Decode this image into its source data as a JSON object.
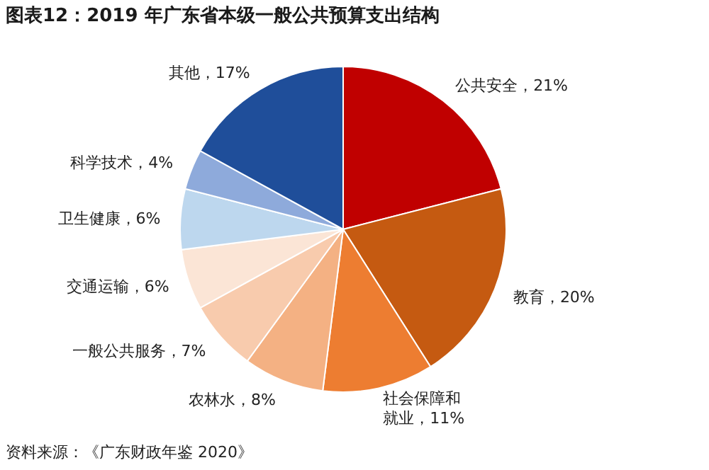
{
  "chart_data": {
    "type": "pie",
    "title": "图表12：2019 年广东省本级一般公共预算支出结构",
    "categories": [
      "公共安全",
      "教育",
      "社会保障和就业",
      "农林水",
      "一般公共服务",
      "交通运输",
      "卫生健康",
      "科学技术",
      "其他"
    ],
    "values": [
      21,
      20,
      11,
      8,
      7,
      6,
      6,
      4,
      17
    ],
    "value_labels": [
      "21%",
      "20%",
      "11%",
      "8%",
      "7%",
      "6%",
      "6%",
      "4%",
      "17%"
    ],
    "colors": [
      "#c00000",
      "#c55a11",
      "#ed7d31",
      "#f4b183",
      "#f8cbad",
      "#fbe5d6",
      "#bdd7ee",
      "#8eaadb",
      "#1f4e9a"
    ],
    "annotations": [
      "资料来源：《广东财政年鉴 2020》"
    ]
  }
}
